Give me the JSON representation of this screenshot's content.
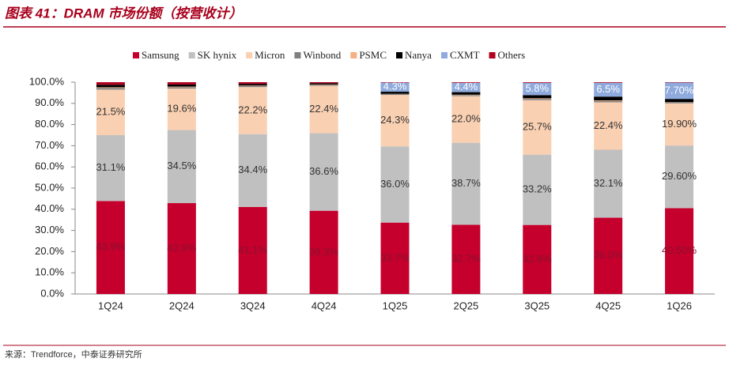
{
  "title": "图表 41：DRAM 市场份额（按营收计）",
  "source": "来源：Trendforce，中泰证券研究所",
  "chart_data": {
    "type": "stacked_bar",
    "categories": [
      "1Q24",
      "2Q24",
      "3Q24",
      "4Q24",
      "1Q25",
      "2Q25",
      "3Q25",
      "4Q25",
      "1Q26"
    ],
    "series": [
      {
        "name": "Samsung",
        "color": "#c5002c",
        "values": [
          43.9,
          42.9,
          41.1,
          39.3,
          33.7,
          32.7,
          32.6,
          36.0,
          40.5
        ],
        "value_labels": [
          "43.9%",
          "42.9%",
          "41.1%",
          "39.3%",
          "33.7%",
          "32.7%",
          "32.6%",
          "36.0%",
          "40.50%"
        ]
      },
      {
        "name": "SK hynix",
        "color": "#c0c0c0",
        "values": [
          31.1,
          34.5,
          34.4,
          36.6,
          36.0,
          38.7,
          33.2,
          32.1,
          29.6
        ],
        "value_labels": [
          "31.1%",
          "34.5%",
          "34.4%",
          "36.6%",
          "36.0%",
          "38.7%",
          "33.2%",
          "32.1%",
          "29.60%"
        ]
      },
      {
        "name": "Micron",
        "color": "#fad0b2",
        "values": [
          21.5,
          19.6,
          22.2,
          22.4,
          24.3,
          22.0,
          25.7,
          22.4,
          19.9
        ],
        "value_labels": [
          "21.5%",
          "19.6%",
          "22.2%",
          "22.4%",
          "24.3%",
          "22.0%",
          "25.7%",
          "22.4%",
          "19.90%"
        ]
      },
      {
        "name": "Winbond",
        "color": "#808080",
        "values": [
          0.8,
          0.6,
          0.5,
          0.4,
          0.4,
          0.5,
          0.6,
          0.6,
          0.5
        ]
      },
      {
        "name": "PSMC",
        "color": "#f4b183",
        "values": [
          0.3,
          0.3,
          0.2,
          0.2,
          0.1,
          0.2,
          0.3,
          0.3,
          0.1
        ]
      },
      {
        "name": "Nanya",
        "color": "#000000",
        "values": [
          1.2,
          1.0,
          0.8,
          0.6,
          1.0,
          1.2,
          1.5,
          1.8,
          1.5
        ]
      },
      {
        "name": "CXMT",
        "color": "#8faadc",
        "values": [
          0,
          0,
          0,
          0,
          4.3,
          4.4,
          5.8,
          6.5,
          7.7
        ],
        "value_labels": [
          null,
          null,
          null,
          null,
          "4.3%",
          "4.4%",
          "5.8%",
          "6.5%",
          "7.70%"
        ]
      },
      {
        "name": "Others",
        "color": "#b0001e",
        "values": [
          1.2,
          1.1,
          0.8,
          0.5,
          0.2,
          0.3,
          0.3,
          0.3,
          0.2
        ]
      }
    ],
    "ylim": [
      0,
      100
    ],
    "yticks": [
      {
        "value": 0,
        "label": "0.0%"
      },
      {
        "value": 10,
        "label": "10.0%"
      },
      {
        "value": 20,
        "label": "20.0%"
      },
      {
        "value": 30,
        "label": "30.0%"
      },
      {
        "value": 40,
        "label": "40.0%"
      },
      {
        "value": 50,
        "label": "50.0%"
      },
      {
        "value": 60,
        "label": "60.0%"
      },
      {
        "value": 70,
        "label": "70.0%"
      },
      {
        "value": 80,
        "label": "80.0%"
      },
      {
        "value": 90,
        "label": "90.0%"
      },
      {
        "value": 100,
        "label": "100.0%"
      }
    ]
  }
}
